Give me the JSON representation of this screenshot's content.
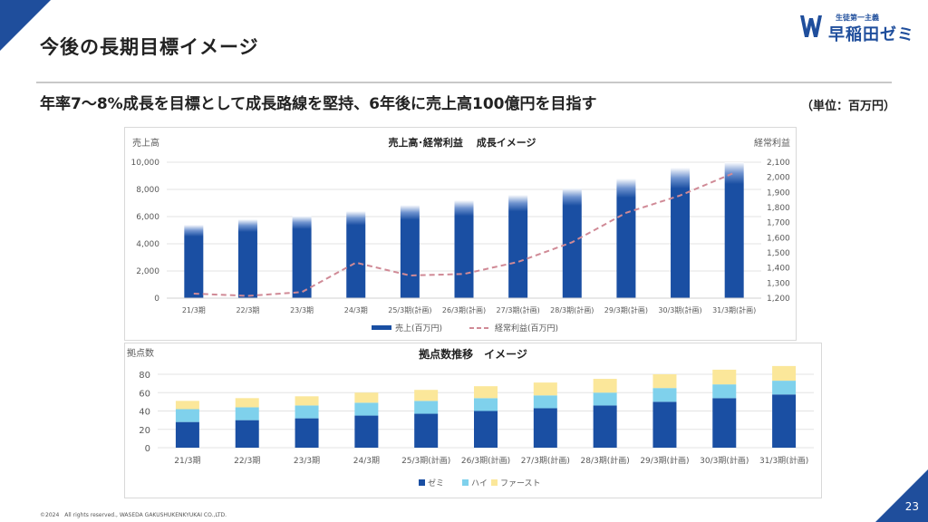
{
  "slide": {
    "title": "今後の長期目標イメージ",
    "subtitle": "年率7～8%成長を目標として成長路線を堅持、6年後に売上高100億円を目指す",
    "unit_note": "（単位：百万円）",
    "page_number": "23",
    "copyright": "©2024　All rights reserved., WASEDA GAKUSHUKENKYUKAI CO.,LTD."
  },
  "logo": {
    "tagline": "生徒第一主義",
    "name": "早稲田ゼミ",
    "mark": "W",
    "color": "#1f4e9c"
  },
  "chart_data": [
    {
      "type": "bar",
      "title": "売上高･経常利益　 成長イメージ",
      "ylabel": "売上高",
      "y2label": "経常利益",
      "categories": [
        "21/3期",
        "22/3期",
        "23/3期",
        "24/3期",
        "25/3期(計画)",
        "26/3期(計画)",
        "27/3期(計画)",
        "28/3期(計画)",
        "29/3期(計画)",
        "30/3期(計画)",
        "31/3期(計画)"
      ],
      "ylim": [
        0,
        10000
      ],
      "yticks": [
        0,
        2000,
        4000,
        6000,
        8000,
        10000
      ],
      "ytick_labels": [
        "0",
        "2,000",
        "4,000",
        "6,000",
        "8,000",
        "10,000"
      ],
      "y2lim": [
        1200,
        2100
      ],
      "y2ticks": [
        1200,
        1300,
        1400,
        1500,
        1600,
        1700,
        1800,
        1900,
        2000,
        2100
      ],
      "y2tick_labels": [
        "1,200",
        "1,300",
        "1,400",
        "1,500",
        "1,600",
        "1,700",
        "1,800",
        "1,900",
        "2,000",
        "2,100"
      ],
      "series": [
        {
          "name": "売上(百万円)",
          "type": "bar",
          "axis": "left",
          "color": "#1a4fa3",
          "values": [
            5400,
            5800,
            6050,
            6400,
            6850,
            7200,
            7600,
            8100,
            8800,
            9600,
            10000
          ]
        },
        {
          "name": "経常利益(百万円)",
          "type": "line",
          "axis": "right",
          "color": "#d08a96",
          "dash": true,
          "values": [
            1230,
            1215,
            1240,
            1435,
            1350,
            1360,
            1440,
            1570,
            1765,
            1880,
            2030
          ]
        }
      ],
      "legend": "bottom",
      "grid": true
    },
    {
      "type": "bar",
      "stacked": true,
      "title": "拠点数推移　イメージ",
      "ylabel": "拠点数",
      "categories": [
        "21/3期",
        "22/3期",
        "23/3期",
        "24/3期",
        "25/3期(計画)",
        "26/3期(計画)",
        "27/3期(計画)",
        "28/3期(計画)",
        "29/3期(計画)",
        "30/3期(計画)",
        "31/3期(計画)"
      ],
      "ylim": [
        0,
        80
      ],
      "yticks": [
        0,
        20,
        40,
        60,
        80
      ],
      "ytick_labels": [
        "0",
        "20",
        "40",
        "60",
        "80"
      ],
      "series": [
        {
          "name": "ゼミ",
          "color": "#1a4fa3",
          "values": [
            28,
            30,
            32,
            35,
            37,
            40,
            43,
            46,
            50,
            54,
            58
          ]
        },
        {
          "name": "ハイ",
          "color": "#7fd1ec",
          "values": [
            14,
            14,
            14,
            14,
            14,
            14,
            14,
            14,
            15,
            15,
            15
          ]
        },
        {
          "name": "ファースト",
          "color": "#fbe79a",
          "values": [
            9,
            10,
            10,
            11,
            12,
            13,
            14,
            15,
            15,
            16,
            16
          ]
        }
      ],
      "legend": "bottom",
      "grid": true
    }
  ]
}
